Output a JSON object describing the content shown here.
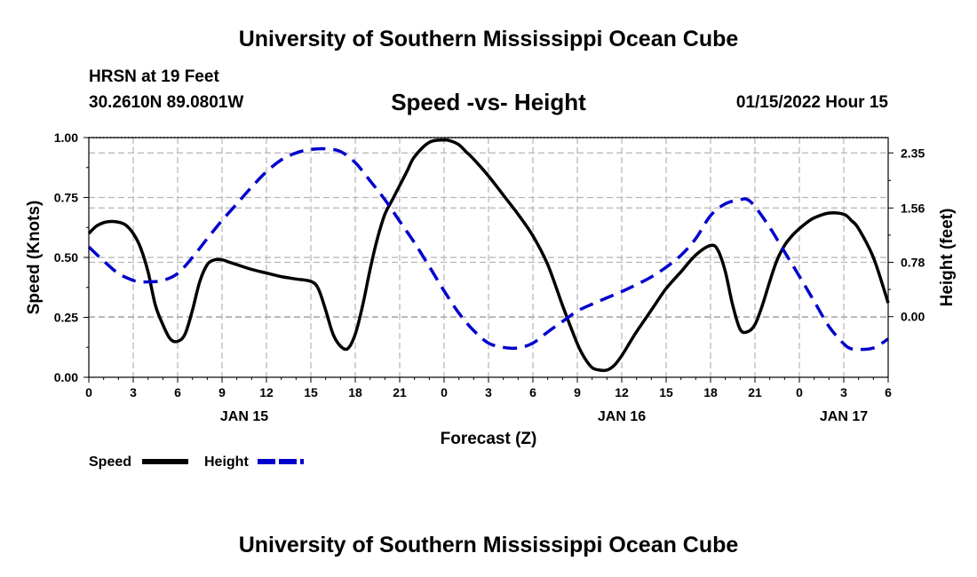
{
  "header": {
    "title": "University of Southern Mississippi Ocean Cube",
    "station": "HRSN at 19 Feet",
    "coords": "30.2610N  89.0801W",
    "timestamp": "01/15/2022 Hour 15"
  },
  "footer": {
    "title": "University of Southern Mississippi Ocean Cube"
  },
  "chart_data": {
    "type": "line",
    "title": "Speed -vs- Height",
    "xlabel": "Forecast (Z)",
    "ylabel": "Speed (Knots)",
    "y2label": "Height (feet)",
    "xlim": [
      0,
      54
    ],
    "ylim": [
      0,
      1
    ],
    "y2lim": [
      -0.87,
      2.57
    ],
    "x_ticks": [
      0,
      3,
      6,
      9,
      12,
      15,
      18,
      21,
      24,
      27,
      30,
      33,
      36,
      39,
      42,
      45,
      48,
      51,
      54
    ],
    "x_tick_labels": [
      "0",
      "3",
      "6",
      "9",
      "12",
      "15",
      "18",
      "21",
      "0",
      "3",
      "6",
      "9",
      "12",
      "15",
      "18",
      "21",
      "0",
      "3",
      "6"
    ],
    "day_labels": [
      {
        "x": 10.5,
        "label": "JAN 15"
      },
      {
        "x": 36,
        "label": "JAN 16"
      },
      {
        "x": 51,
        "label": "JAN 17"
      }
    ],
    "y_ticks": [
      0,
      0.25,
      0.5,
      0.75,
      1.0
    ],
    "y_tick_labels": [
      "0.00",
      "0.25",
      "0.50",
      "0.75",
      "1.00"
    ],
    "y2_ticks": [
      0.0,
      0.78,
      1.56,
      2.35
    ],
    "y2_tick_labels": [
      "0.00",
      "0.78",
      "1.56",
      "2.35"
    ],
    "grid": true,
    "colors": {
      "speed": "#000000",
      "height": "#0000cc",
      "grid": "#b5b5b5"
    },
    "series": [
      {
        "name": "Speed",
        "axis": "left",
        "style": "solid",
        "x": [
          0,
          0.5,
          1,
          1.5,
          2,
          2.5,
          3,
          3.5,
          4,
          4.5,
          5,
          5.5,
          6,
          6.5,
          7,
          7.5,
          8,
          8.5,
          9,
          9.5,
          10,
          11,
          12,
          13,
          14,
          15,
          15.5,
          16,
          16.5,
          17,
          17.5,
          18,
          18.5,
          19,
          19.5,
          20,
          20.5,
          21,
          21.5,
          22,
          23,
          24,
          24.5,
          25,
          25.5,
          26,
          27,
          28,
          29,
          30,
          31,
          32,
          33,
          33.5,
          34,
          34.5,
          35,
          35.5,
          36,
          36.5,
          37,
          38,
          39,
          40,
          41,
          42,
          42.5,
          43,
          43.5,
          44,
          44.5,
          45,
          45.5,
          46,
          46.5,
          47,
          47.5,
          48,
          48.5,
          49,
          50,
          51,
          51.5,
          52,
          53,
          54
        ],
        "values": [
          0.6,
          0.63,
          0.645,
          0.65,
          0.647,
          0.635,
          0.6,
          0.54,
          0.44,
          0.3,
          0.22,
          0.16,
          0.15,
          0.18,
          0.28,
          0.4,
          0.47,
          0.49,
          0.49,
          0.48,
          0.47,
          0.45,
          0.435,
          0.42,
          0.41,
          0.4,
          0.37,
          0.28,
          0.18,
          0.13,
          0.12,
          0.18,
          0.3,
          0.45,
          0.58,
          0.68,
          0.74,
          0.8,
          0.86,
          0.92,
          0.98,
          0.99,
          0.985,
          0.97,
          0.94,
          0.91,
          0.84,
          0.76,
          0.68,
          0.59,
          0.47,
          0.3,
          0.14,
          0.08,
          0.04,
          0.03,
          0.03,
          0.05,
          0.09,
          0.14,
          0.19,
          0.28,
          0.37,
          0.44,
          0.51,
          0.55,
          0.53,
          0.44,
          0.3,
          0.2,
          0.19,
          0.22,
          0.3,
          0.4,
          0.49,
          0.55,
          0.59,
          0.62,
          0.645,
          0.665,
          0.685,
          0.68,
          0.655,
          0.62,
          0.5,
          0.31
        ]
      },
      {
        "name": "Height",
        "axis": "right",
        "style": "dashed",
        "x": [
          0,
          1,
          2,
          3,
          3.5,
          4,
          5,
          6,
          7,
          8,
          9,
          10,
          11,
          12,
          13,
          14,
          15,
          16,
          17,
          18,
          19,
          20,
          21,
          22,
          23,
          24,
          25,
          26,
          27,
          28,
          29,
          30,
          31,
          32,
          33,
          34,
          35,
          36,
          37,
          38,
          39,
          40,
          41,
          42,
          43,
          44,
          44.5,
          45,
          46,
          47,
          48,
          49,
          50,
          51,
          51.5,
          52,
          53,
          54
        ],
        "values": [
          1.0,
          0.8,
          0.62,
          0.52,
          0.5,
          0.5,
          0.52,
          0.62,
          0.85,
          1.12,
          1.38,
          1.62,
          1.86,
          2.08,
          2.25,
          2.35,
          2.4,
          2.41,
          2.37,
          2.21,
          1.95,
          1.68,
          1.37,
          1.06,
          0.72,
          0.37,
          0.05,
          -0.2,
          -0.38,
          -0.44,
          -0.45,
          -0.38,
          -0.22,
          -0.07,
          0.08,
          0.18,
          0.27,
          0.36,
          0.46,
          0.57,
          0.71,
          0.88,
          1.12,
          1.45,
          1.62,
          1.68,
          1.68,
          1.58,
          1.28,
          0.93,
          0.58,
          0.22,
          -0.14,
          -0.39,
          -0.46,
          -0.47,
          -0.45,
          -0.32
        ]
      }
    ],
    "legend": [
      {
        "label": "Speed",
        "color": "#000000",
        "style": "solid"
      },
      {
        "label": "Height",
        "color": "#0000cc",
        "style": "dashed"
      }
    ]
  }
}
